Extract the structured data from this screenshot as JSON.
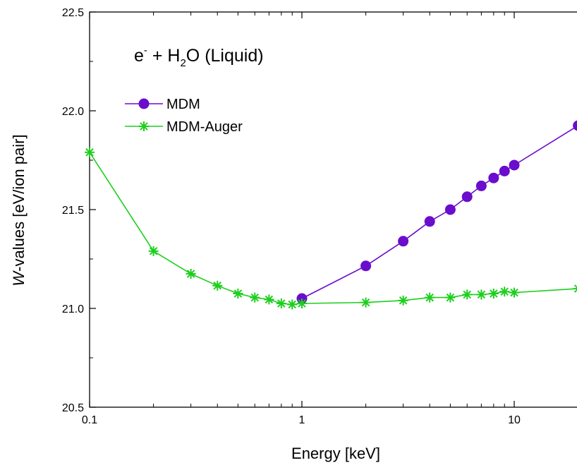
{
  "chart_data": {
    "type": "line",
    "xscale": "log",
    "xlim": [
      0.1,
      20
    ],
    "ylim": [
      20.5,
      22.5
    ],
    "xlabel": "Energy [keV]",
    "ylabel": {
      "italic_part": "W",
      "rest": "-values [eV/ion pair]"
    },
    "x_ticks": [
      {
        "value": 0.1,
        "label": "0.1"
      },
      {
        "value": 1,
        "label": "1"
      },
      {
        "value": 10,
        "label": "10"
      }
    ],
    "y_ticks": [
      {
        "value": 20.5,
        "label": "20.5"
      },
      {
        "value": 21.0,
        "label": "21.0"
      },
      {
        "value": 21.5,
        "label": "21.5"
      },
      {
        "value": 22.0,
        "label": "22.0"
      },
      {
        "value": 22.5,
        "label": "22.5"
      }
    ],
    "annotation": {
      "prefix": "e",
      "sup": "-",
      "middle": " + H",
      "sub": "2",
      "suffix": "O (Liquid)"
    },
    "legend_position": "top-left",
    "series": [
      {
        "name": "MDM",
        "color": "#6a0dcc",
        "marker": "circle",
        "x": [
          1,
          2,
          3,
          4,
          5,
          6,
          7,
          8,
          9,
          10,
          20
        ],
        "y": [
          21.05,
          21.215,
          21.34,
          21.44,
          21.5,
          21.565,
          21.62,
          21.66,
          21.695,
          21.725,
          21.925
        ]
      },
      {
        "name": "MDM-Auger",
        "color": "#1ccf1c",
        "marker": "asterisk",
        "x": [
          0.1,
          0.2,
          0.3,
          0.4,
          0.5,
          0.6,
          0.7,
          0.8,
          0.9,
          1,
          2,
          3,
          4,
          5,
          6,
          7,
          8,
          9,
          10,
          20
        ],
        "y": [
          21.79,
          21.29,
          21.175,
          21.115,
          21.075,
          21.055,
          21.045,
          21.025,
          21.02,
          21.025,
          21.03,
          21.04,
          21.055,
          21.055,
          21.07,
          21.07,
          21.075,
          21.085,
          21.08,
          21.1
        ]
      }
    ]
  }
}
